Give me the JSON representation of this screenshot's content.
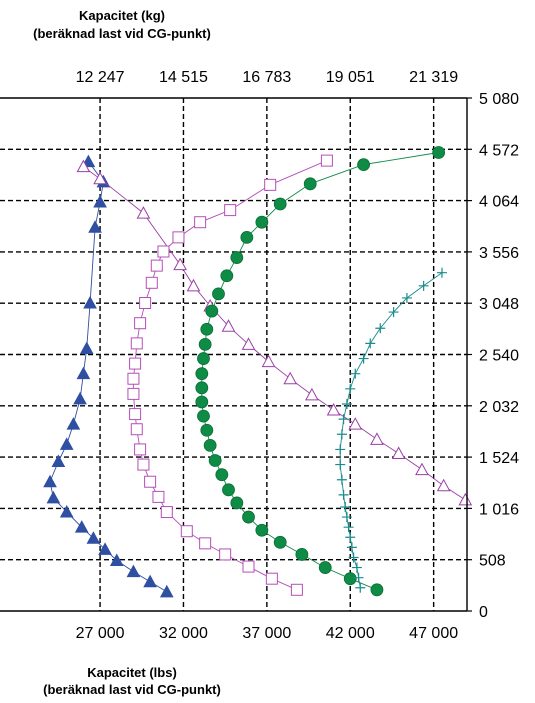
{
  "chart_data": {
    "type": "scatter",
    "top_axis": {
      "label_line1": "Kapacitet (kg)",
      "label_line2": "(beräknad last vid CG-punkt)",
      "ticks": [
        "12 247",
        "14 515",
        "16 783",
        "19 051",
        "21 319"
      ],
      "tick_values_lbs": [
        27000,
        32000,
        37000,
        42000,
        47000
      ]
    },
    "bottom_axis": {
      "label_line1": "Kapacitet (lbs)",
      "label_line2": "(beräknad last vid CG-punkt)",
      "ticks": [
        "27 000",
        "32 000",
        "37 000",
        "42 000",
        "47 000"
      ],
      "values": [
        27000,
        32000,
        37000,
        42000,
        47000
      ],
      "xlim": [
        21000,
        49000
      ]
    },
    "right_axis": {
      "ticks": [
        "0",
        "508",
        "1 016",
        "1 524",
        "2 032",
        "2 540",
        "3 048",
        "3 556",
        "4 064",
        "4 572",
        "5 080"
      ],
      "values": [
        0,
        508,
        1016,
        1524,
        2032,
        2540,
        3048,
        3556,
        4064,
        4572,
        5080
      ],
      "ylim": [
        0,
        5080
      ]
    },
    "grid": true,
    "series": [
      {
        "marker": "triangle-filled",
        "color": "#2f4fa3",
        "points": [
          [
            31000,
            190
          ],
          [
            30000,
            290
          ],
          [
            29000,
            390
          ],
          [
            28000,
            500
          ],
          [
            27300,
            610
          ],
          [
            26600,
            720
          ],
          [
            25900,
            830
          ],
          [
            25000,
            980
          ],
          [
            24200,
            1120
          ],
          [
            24000,
            1280
          ],
          [
            24500,
            1480
          ],
          [
            25000,
            1650
          ],
          [
            25400,
            1850
          ],
          [
            25800,
            2100
          ],
          [
            26000,
            2350
          ],
          [
            26200,
            2600
          ],
          [
            26400,
            3050
          ],
          [
            26700,
            3800
          ],
          [
            27000,
            4050
          ],
          [
            27200,
            4250
          ],
          [
            26300,
            4450
          ]
        ]
      },
      {
        "marker": "triangle-open",
        "color": "#9b3fa6",
        "points": [
          [
            48900,
            1100
          ],
          [
            47600,
            1240
          ],
          [
            46300,
            1400
          ],
          [
            44900,
            1560
          ],
          [
            43600,
            1700
          ],
          [
            42300,
            1850
          ],
          [
            41000,
            1990
          ],
          [
            39700,
            2140
          ],
          [
            38400,
            2300
          ],
          [
            37100,
            2470
          ],
          [
            35900,
            2640
          ],
          [
            34700,
            2820
          ],
          [
            33600,
            3020
          ],
          [
            32600,
            3220
          ],
          [
            31800,
            3430
          ],
          [
            29600,
            3940
          ],
          [
            27000,
            4280
          ],
          [
            26000,
            4400
          ]
        ]
      },
      {
        "marker": "square-open",
        "color": "#b44fb8",
        "points": [
          [
            38800,
            210
          ],
          [
            37300,
            320
          ],
          [
            35900,
            440
          ],
          [
            34500,
            560
          ],
          [
            33300,
            670
          ],
          [
            32200,
            790
          ],
          [
            31000,
            980
          ],
          [
            30500,
            1130
          ],
          [
            30000,
            1280
          ],
          [
            29600,
            1450
          ],
          [
            29400,
            1600
          ],
          [
            29200,
            1800
          ],
          [
            29100,
            1950
          ],
          [
            29000,
            2150
          ],
          [
            29000,
            2300
          ],
          [
            29100,
            2450
          ],
          [
            29200,
            2650
          ],
          [
            29400,
            2850
          ],
          [
            29700,
            3050
          ],
          [
            30100,
            3250
          ],
          [
            30400,
            3420
          ],
          [
            30800,
            3560
          ],
          [
            31700,
            3700
          ],
          [
            33000,
            3850
          ],
          [
            34800,
            3970
          ],
          [
            37200,
            4220
          ],
          [
            40600,
            4460
          ]
        ]
      },
      {
        "marker": "circle-filled",
        "color": "#0e8b45",
        "points": [
          [
            43600,
            210
          ],
          [
            42000,
            320
          ],
          [
            40500,
            430
          ],
          [
            39100,
            560
          ],
          [
            37800,
            680
          ],
          [
            36700,
            800
          ],
          [
            35900,
            930
          ],
          [
            35200,
            1070
          ],
          [
            34700,
            1200
          ],
          [
            34300,
            1350
          ],
          [
            33900,
            1490
          ],
          [
            33600,
            1640
          ],
          [
            33400,
            1790
          ],
          [
            33200,
            1930
          ],
          [
            33100,
            2070
          ],
          [
            33100,
            2210
          ],
          [
            33100,
            2350
          ],
          [
            33200,
            2500
          ],
          [
            33300,
            2640
          ],
          [
            33400,
            2790
          ],
          [
            33700,
            2970
          ],
          [
            34100,
            3140
          ],
          [
            34600,
            3320
          ],
          [
            35200,
            3500
          ],
          [
            35800,
            3700
          ],
          [
            36700,
            3850
          ],
          [
            37800,
            4030
          ],
          [
            39600,
            4230
          ],
          [
            42800,
            4420
          ],
          [
            47300,
            4540
          ]
        ]
      },
      {
        "marker": "plus",
        "color": "#1a8c8c",
        "points": [
          [
            42600,
            230
          ],
          [
            42500,
            330
          ],
          [
            42400,
            430
          ],
          [
            42200,
            530
          ],
          [
            42100,
            630
          ],
          [
            42000,
            730
          ],
          [
            41900,
            830
          ],
          [
            41800,
            930
          ],
          [
            41700,
            1030
          ],
          [
            41600,
            1150
          ],
          [
            41500,
            1300
          ],
          [
            41400,
            1450
          ],
          [
            41400,
            1600
          ],
          [
            41500,
            1750
          ],
          [
            41600,
            1900
          ],
          [
            41800,
            2050
          ],
          [
            42000,
            2200
          ],
          [
            42300,
            2350
          ],
          [
            42800,
            2500
          ],
          [
            43200,
            2650
          ],
          [
            43800,
            2800
          ],
          [
            44600,
            2960
          ],
          [
            45400,
            3100
          ],
          [
            46400,
            3220
          ],
          [
            47500,
            3350
          ]
        ]
      }
    ]
  }
}
